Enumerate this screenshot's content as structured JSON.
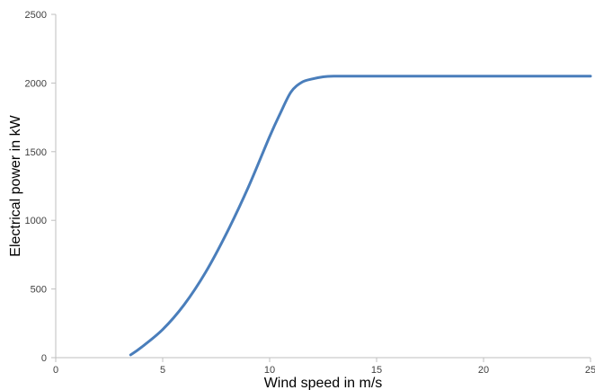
{
  "chart_data": {
    "type": "line",
    "title": "",
    "xlabel": "Wind speed  in m/s",
    "ylabel": "Electrical power in kW",
    "xlim": [
      0,
      25
    ],
    "ylim": [
      0,
      2500
    ],
    "x_ticks": [
      0,
      5,
      10,
      15,
      20,
      25
    ],
    "y_ticks": [
      0,
      500,
      1000,
      1500,
      2000,
      2500
    ],
    "grid": false,
    "legend": "none",
    "series": [
      {
        "color": "#4a7ebb",
        "x": [
          3.5,
          4,
          5,
          6,
          7,
          8,
          9,
          10,
          10.5,
          11,
          11.5,
          12,
          12.5,
          13,
          14,
          15,
          16,
          17,
          18,
          19,
          20,
          21,
          22,
          23,
          24,
          25
        ],
        "y": [
          20,
          75,
          205,
          385,
          620,
          910,
          1240,
          1610,
          1780,
          1935,
          2005,
          2030,
          2045,
          2050,
          2050,
          2050,
          2050,
          2050,
          2050,
          2050,
          2050,
          2050,
          2050,
          2050,
          2050,
          2050
        ]
      }
    ],
    "axis_color": "#bfbfbf"
  }
}
